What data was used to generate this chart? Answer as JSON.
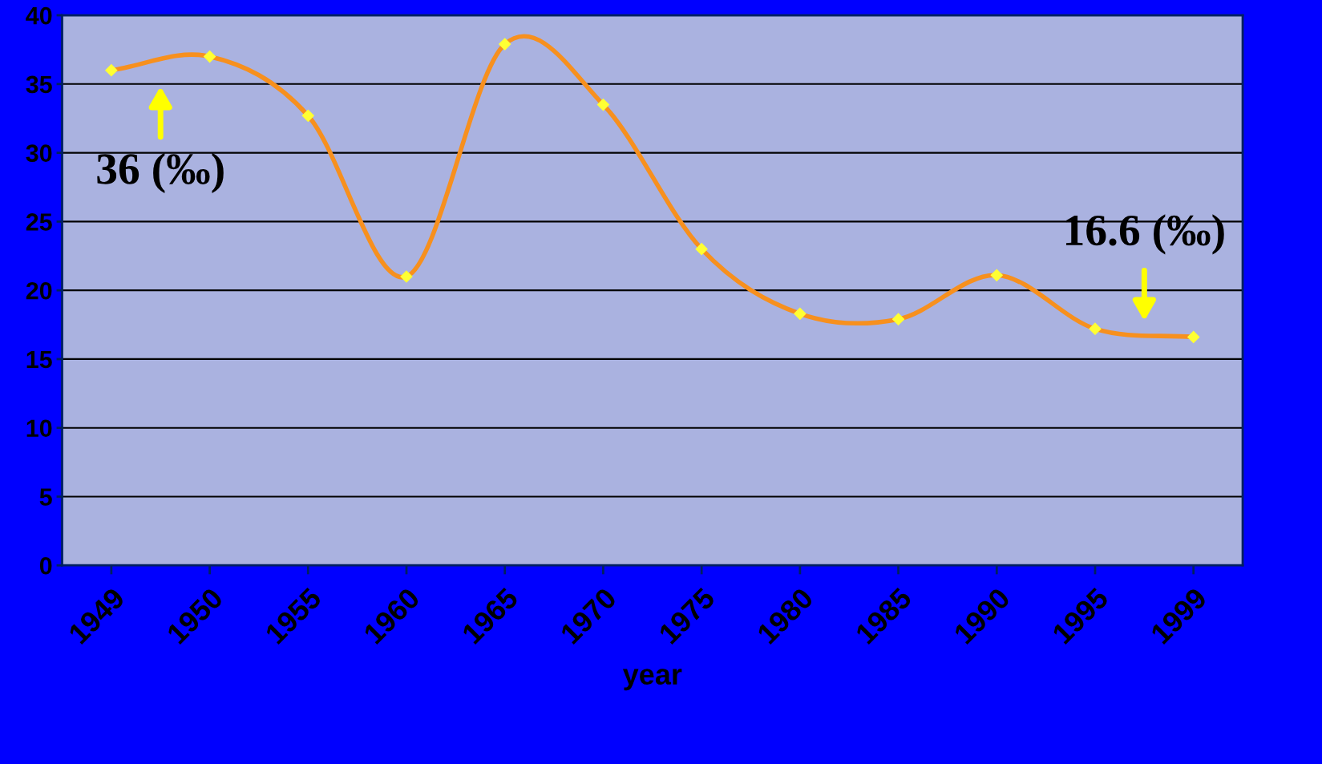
{
  "chart_data": {
    "type": "line",
    "xlabel": "year",
    "categories": [
      "1949",
      "1950",
      "1955",
      "1960",
      "1965",
      "1970",
      "1975",
      "1980",
      "1985",
      "1990",
      "1995",
      "1999"
    ],
    "series": [
      {
        "color": "#f7901e",
        "values": [
          36,
          37,
          32.7,
          21,
          37.9,
          33.5,
          23,
          18.3,
          17.9,
          21.1,
          17.2,
          16.6
        ]
      }
    ],
    "marker": "diamond",
    "line_style": "solid",
    "ylim": [
      0,
      40
    ],
    "yticks": [
      0,
      5,
      10,
      15,
      20,
      25,
      30,
      35,
      40
    ],
    "grid": "y",
    "annotations": [
      {
        "text": "36 (‰)",
        "x": "1949",
        "y": 36
      },
      {
        "text": "16.6 (‰)",
        "x": "1999",
        "y": 16.6
      }
    ]
  }
}
